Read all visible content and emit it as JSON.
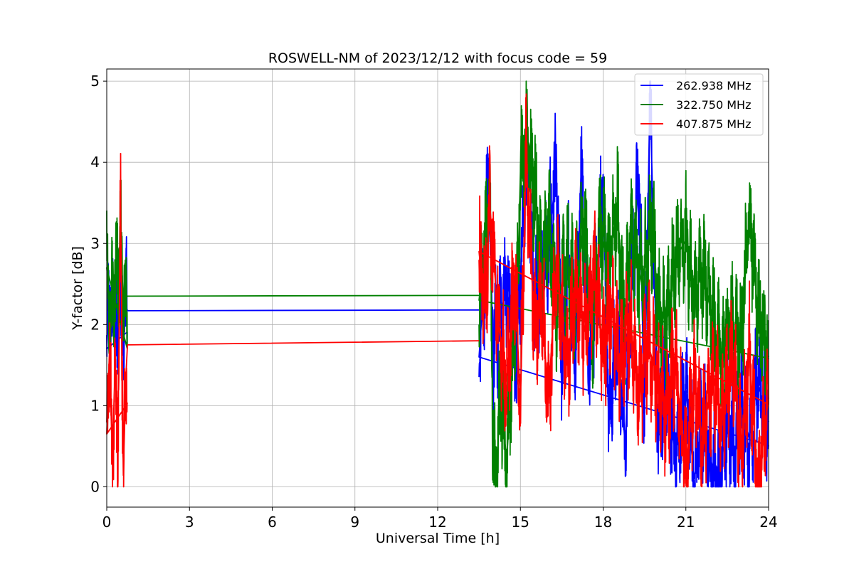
{
  "chart_data": {
    "type": "line",
    "title": "ROSWELL-NM of 2023/12/12 with focus code = 59",
    "xlabel": "Universal Time [h]",
    "ylabel": "Y-factor [dB]",
    "xlim": [
      0,
      24
    ],
    "ylim": [
      -0.25,
      5.15
    ],
    "xticks": [
      0,
      3,
      6,
      9,
      12,
      15,
      18,
      21,
      24
    ],
    "yticks": [
      0,
      1,
      2,
      3,
      4,
      5
    ],
    "grid": true,
    "legend_position": "top-right",
    "series": [
      {
        "name": "262.938 MHz",
        "color": "#0000ff",
        "gap": [
          0.75,
          13.5
        ],
        "gap_level": [
          2.17,
          2.18
        ],
        "points": [
          [
            0.0,
            1.7
          ],
          [
            0.1,
            2.4
          ],
          [
            0.2,
            1.9
          ],
          [
            0.3,
            2.3
          ],
          [
            0.4,
            1.5
          ],
          [
            0.45,
            2.85
          ],
          [
            0.55,
            1.8
          ],
          [
            0.65,
            2.3
          ],
          [
            0.75,
            2.17
          ],
          [
            13.5,
            1.6
          ],
          [
            13.7,
            2.6
          ],
          [
            13.85,
            4.05
          ],
          [
            14.0,
            1.7
          ],
          [
            14.2,
            2.0
          ],
          [
            14.5,
            2.5
          ],
          [
            14.8,
            1.5
          ],
          [
            15.0,
            2.6
          ],
          [
            15.2,
            4.05
          ],
          [
            15.5,
            2.3
          ],
          [
            16.0,
            2.9
          ],
          [
            16.3,
            3.9
          ],
          [
            16.5,
            1.5
          ],
          [
            16.7,
            2.8
          ],
          [
            17.0,
            1.8
          ],
          [
            17.2,
            3.9
          ],
          [
            17.5,
            1.6
          ],
          [
            17.8,
            2.6
          ],
          [
            18.0,
            3.85
          ],
          [
            18.2,
            0.75
          ],
          [
            18.5,
            1.9
          ],
          [
            18.8,
            0.5
          ],
          [
            19.0,
            2.4
          ],
          [
            19.3,
            3.85
          ],
          [
            19.5,
            1.0
          ],
          [
            19.7,
            4.9
          ],
          [
            20.0,
            0.6
          ],
          [
            20.3,
            1.5
          ],
          [
            20.6,
            0.4
          ],
          [
            21.0,
            1.2
          ],
          [
            21.3,
            0.1
          ],
          [
            21.6,
            0.8
          ],
          [
            22.0,
            0.2
          ],
          [
            22.2,
            0.0
          ],
          [
            22.5,
            0.9
          ],
          [
            22.8,
            0.4
          ],
          [
            23.0,
            1.0
          ],
          [
            23.3,
            0.6
          ],
          [
            23.6,
            1.3
          ],
          [
            24.0,
            0.8
          ]
        ]
      },
      {
        "name": "322.750 MHz",
        "color": "#008000",
        "gap": [
          0.75,
          13.5
        ],
        "gap_level": [
          2.35,
          2.36
        ],
        "points": [
          [
            0.0,
            2.7
          ],
          [
            0.15,
            2.1
          ],
          [
            0.3,
            2.5
          ],
          [
            0.5,
            3.05
          ],
          [
            0.6,
            2.3
          ],
          [
            0.75,
            2.35
          ],
          [
            13.5,
            2.3
          ],
          [
            13.7,
            2.9
          ],
          [
            13.9,
            3.5
          ],
          [
            14.0,
            0.7
          ],
          [
            14.1,
            0.0
          ],
          [
            14.3,
            1.2
          ],
          [
            14.5,
            0.3
          ],
          [
            14.7,
            1.5
          ],
          [
            14.9,
            2.5
          ],
          [
            15.0,
            3.9
          ],
          [
            15.2,
            4.25
          ],
          [
            15.5,
            3.7
          ],
          [
            15.8,
            2.6
          ],
          [
            16.0,
            3.2
          ],
          [
            16.3,
            2.2
          ],
          [
            16.7,
            2.8
          ],
          [
            17.0,
            2.3
          ],
          [
            17.3,
            3.3
          ],
          [
            17.6,
            1.9
          ],
          [
            17.9,
            3.2
          ],
          [
            18.2,
            2.7
          ],
          [
            18.5,
            3.5
          ],
          [
            18.8,
            2.0
          ],
          [
            19.0,
            3.2
          ],
          [
            19.4,
            2.5
          ],
          [
            19.8,
            3.3
          ],
          [
            20.0,
            2.1
          ],
          [
            20.3,
            2.0
          ],
          [
            20.6,
            2.8
          ],
          [
            21.0,
            3.05
          ],
          [
            21.3,
            2.3
          ],
          [
            21.6,
            2.7
          ],
          [
            22.0,
            2.0
          ],
          [
            22.3,
            1.6
          ],
          [
            22.6,
            2.0
          ],
          [
            23.0,
            1.8
          ],
          [
            23.3,
            3.35
          ],
          [
            23.6,
            2.2
          ],
          [
            24.0,
            1.6
          ]
        ]
      },
      {
        "name": "407.875 MHz",
        "color": "#ff0000",
        "gap": [
          0.75,
          13.5
        ],
        "gap_level": [
          1.75,
          1.8
        ],
        "points": [
          [
            0.0,
            0.65
          ],
          [
            0.1,
            1.7
          ],
          [
            0.2,
            0.3
          ],
          [
            0.3,
            1.5
          ],
          [
            0.4,
            0.5
          ],
          [
            0.5,
            3.55
          ],
          [
            0.6,
            0.15
          ],
          [
            0.7,
            1.4
          ],
          [
            0.75,
            1.75
          ],
          [
            13.5,
            2.9
          ],
          [
            13.7,
            2.2
          ],
          [
            13.9,
            3.45
          ],
          [
            14.2,
            2.0
          ],
          [
            14.5,
            1.3
          ],
          [
            14.8,
            2.6
          ],
          [
            15.0,
            1.0
          ],
          [
            15.2,
            4.1
          ],
          [
            15.5,
            2.0
          ],
          [
            15.8,
            2.3
          ],
          [
            16.0,
            1.0
          ],
          [
            16.3,
            2.7
          ],
          [
            16.7,
            1.5
          ],
          [
            17.0,
            2.5
          ],
          [
            17.3,
            1.9
          ],
          [
            17.7,
            2.6
          ],
          [
            18.0,
            1.7
          ],
          [
            18.3,
            2.3
          ],
          [
            18.6,
            1.5
          ],
          [
            19.0,
            2.0
          ],
          [
            19.3,
            1.1
          ],
          [
            19.6,
            1.8
          ],
          [
            20.0,
            1.3
          ],
          [
            20.3,
            0.9
          ],
          [
            20.6,
            1.6
          ],
          [
            21.0,
            0.2
          ],
          [
            21.3,
            1.3
          ],
          [
            21.6,
            0.6
          ],
          [
            22.0,
            1.4
          ],
          [
            22.3,
            0.8
          ],
          [
            22.7,
            1.6
          ],
          [
            23.0,
            0.4
          ],
          [
            23.3,
            1.7
          ],
          [
            23.6,
            0.0
          ],
          [
            24.0,
            1.1
          ]
        ]
      }
    ]
  }
}
